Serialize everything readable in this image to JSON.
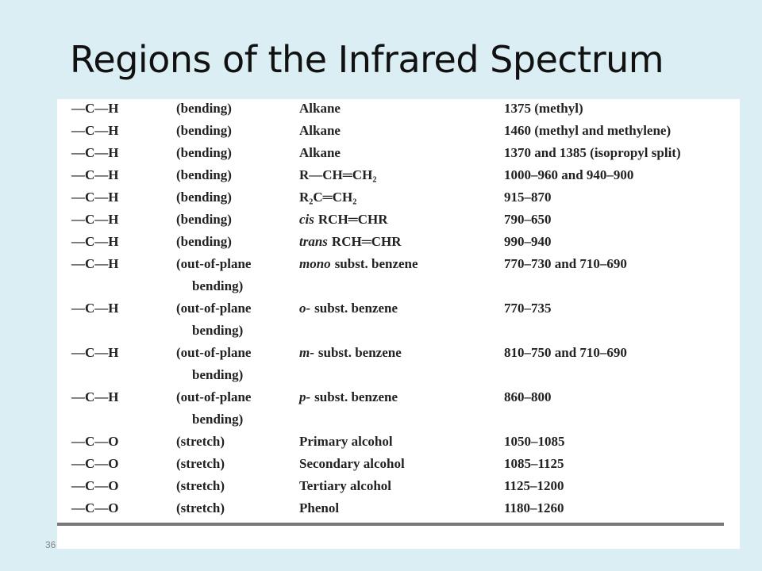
{
  "title": "Regions of the Infrared Spectrum",
  "page_number": "36",
  "table": {
    "rows": [
      [
        "—C—H",
        "(bending)",
        "Alkane",
        "1375 (methyl)"
      ],
      [
        "—C—H",
        "(bending)",
        "Alkane",
        "1460 (methyl and methylene)"
      ],
      [
        "—C—H",
        "(bending)",
        "Alkane",
        "1370 and 1385 (isopropyl split)"
      ],
      [
        "—C—H",
        "(bending)",
        "R—CH═CH₂",
        "1000–960 and 940–900"
      ],
      [
        "—C—H",
        "(bending)",
        "R₂C═CH₂",
        "915–870"
      ],
      [
        "—C—H",
        "(bending)",
        {
          "italic": "cis",
          "text": "RCH═CHR"
        },
        "790–650"
      ],
      [
        "—C—H",
        "(bending)",
        {
          "italic": "trans",
          "text": "RCH═CHR"
        },
        "990–940"
      ],
      [
        "—C—H",
        [
          "(out-of-plane",
          "bending)"
        ],
        {
          "italic": "mono",
          "text": "subst. benzene"
        },
        "770–730 and 710–690"
      ],
      [
        "—C—H",
        [
          "(out-of-plane",
          "bending)"
        ],
        {
          "italic": "o-",
          "text": "subst. benzene"
        },
        "770–735"
      ],
      [
        "—C—H",
        [
          "(out-of-plane",
          "bending)"
        ],
        {
          "italic": "m-",
          "text": "subst. benzene"
        },
        "810–750 and 710–690"
      ],
      [
        "—C—H",
        [
          "(out-of-plane",
          "bending)"
        ],
        {
          "italic": "p-",
          "text": "subst. benzene"
        },
        "860–800"
      ],
      [
        "—C—O",
        "(stretch)",
        "Primary alcohol",
        "1050–1085"
      ],
      [
        "—C—O",
        "(stretch)",
        "Secondary alcohol",
        "1085–1125"
      ],
      [
        "—C—O",
        "(stretch)",
        "Tertiary alcohol",
        "1125–1200"
      ],
      [
        "—C—O",
        "(stretch)",
        "Phenol",
        "1180–1260"
      ]
    ]
  }
}
